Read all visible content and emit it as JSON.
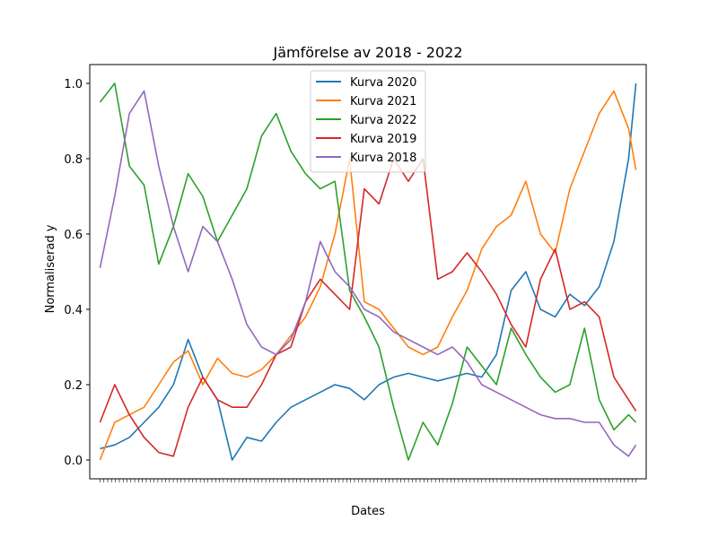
{
  "chart_data": {
    "type": "line",
    "title": "Jämförelse av 2018 - 2022",
    "xlabel": "Dates",
    "ylabel": "Normaliserad y",
    "ylim": [
      -0.05,
      1.05
    ],
    "yticks": [
      0.0,
      0.2,
      0.4,
      0.6,
      0.8,
      1.0
    ],
    "legend_position": "top-center",
    "x": [
      0,
      10,
      20,
      30,
      40,
      50,
      60,
      70,
      80,
      90,
      100,
      110,
      120,
      130,
      140,
      150,
      160,
      170,
      180,
      190,
      200,
      210,
      220,
      230,
      240,
      250,
      260,
      270,
      280,
      290,
      300,
      310,
      320,
      330,
      340,
      350,
      360,
      365
    ],
    "series": [
      {
        "name": "Kurva 2020",
        "color": "#1f77b4",
        "values": [
          0.03,
          0.04,
          0.06,
          0.1,
          0.14,
          0.2,
          0.32,
          0.22,
          0.16,
          0.0,
          0.06,
          0.05,
          0.1,
          0.14,
          0.16,
          0.18,
          0.2,
          0.19,
          0.16,
          0.2,
          0.22,
          0.23,
          0.22,
          0.21,
          0.22,
          0.23,
          0.22,
          0.28,
          0.45,
          0.5,
          0.4,
          0.38,
          0.44,
          0.41,
          0.46,
          0.58,
          0.8,
          1.0
        ]
      },
      {
        "name": "Kurva 2021",
        "color": "#ff7f0e",
        "values": [
          0.0,
          0.1,
          0.12,
          0.14,
          0.2,
          0.26,
          0.29,
          0.2,
          0.27,
          0.23,
          0.22,
          0.24,
          0.28,
          0.33,
          0.38,
          0.46,
          0.6,
          0.8,
          0.42,
          0.4,
          0.35,
          0.3,
          0.28,
          0.3,
          0.38,
          0.45,
          0.56,
          0.62,
          0.65,
          0.74,
          0.6,
          0.55,
          0.72,
          0.82,
          0.92,
          0.98,
          0.88,
          0.77
        ]
      },
      {
        "name": "Kurva 2022",
        "color": "#2ca02c",
        "values": [
          0.95,
          1.0,
          0.78,
          0.73,
          0.52,
          0.62,
          0.76,
          0.7,
          0.58,
          0.65,
          0.72,
          0.86,
          0.92,
          0.82,
          0.76,
          0.72,
          0.74,
          0.45,
          0.38,
          0.3,
          0.14,
          0.0,
          0.1,
          0.04,
          0.15,
          0.3,
          0.25,
          0.2,
          0.35,
          0.28,
          0.22,
          0.18,
          0.2,
          0.35,
          0.16,
          0.08,
          0.12,
          0.1
        ]
      },
      {
        "name": "Kurva 2019",
        "color": "#d62728",
        "values": [
          0.1,
          0.2,
          0.12,
          0.06,
          0.02,
          0.01,
          0.14,
          0.22,
          0.16,
          0.14,
          0.14,
          0.2,
          0.28,
          0.3,
          0.42,
          0.48,
          0.44,
          0.4,
          0.72,
          0.68,
          0.8,
          0.74,
          0.8,
          0.48,
          0.5,
          0.55,
          0.5,
          0.44,
          0.36,
          0.3,
          0.48,
          0.56,
          0.4,
          0.42,
          0.38,
          0.22,
          0.16,
          0.13
        ]
      },
      {
        "name": "Kurva 2018",
        "color": "#9467bd",
        "values": [
          0.51,
          0.7,
          0.92,
          0.98,
          0.78,
          0.62,
          0.5,
          0.62,
          0.58,
          0.48,
          0.36,
          0.3,
          0.28,
          0.32,
          0.42,
          0.58,
          0.5,
          0.46,
          0.4,
          0.38,
          0.34,
          0.32,
          0.3,
          0.28,
          0.3,
          0.26,
          0.2,
          0.18,
          0.16,
          0.14,
          0.12,
          0.11,
          0.11,
          0.1,
          0.1,
          0.04,
          0.01,
          0.04
        ]
      }
    ]
  }
}
